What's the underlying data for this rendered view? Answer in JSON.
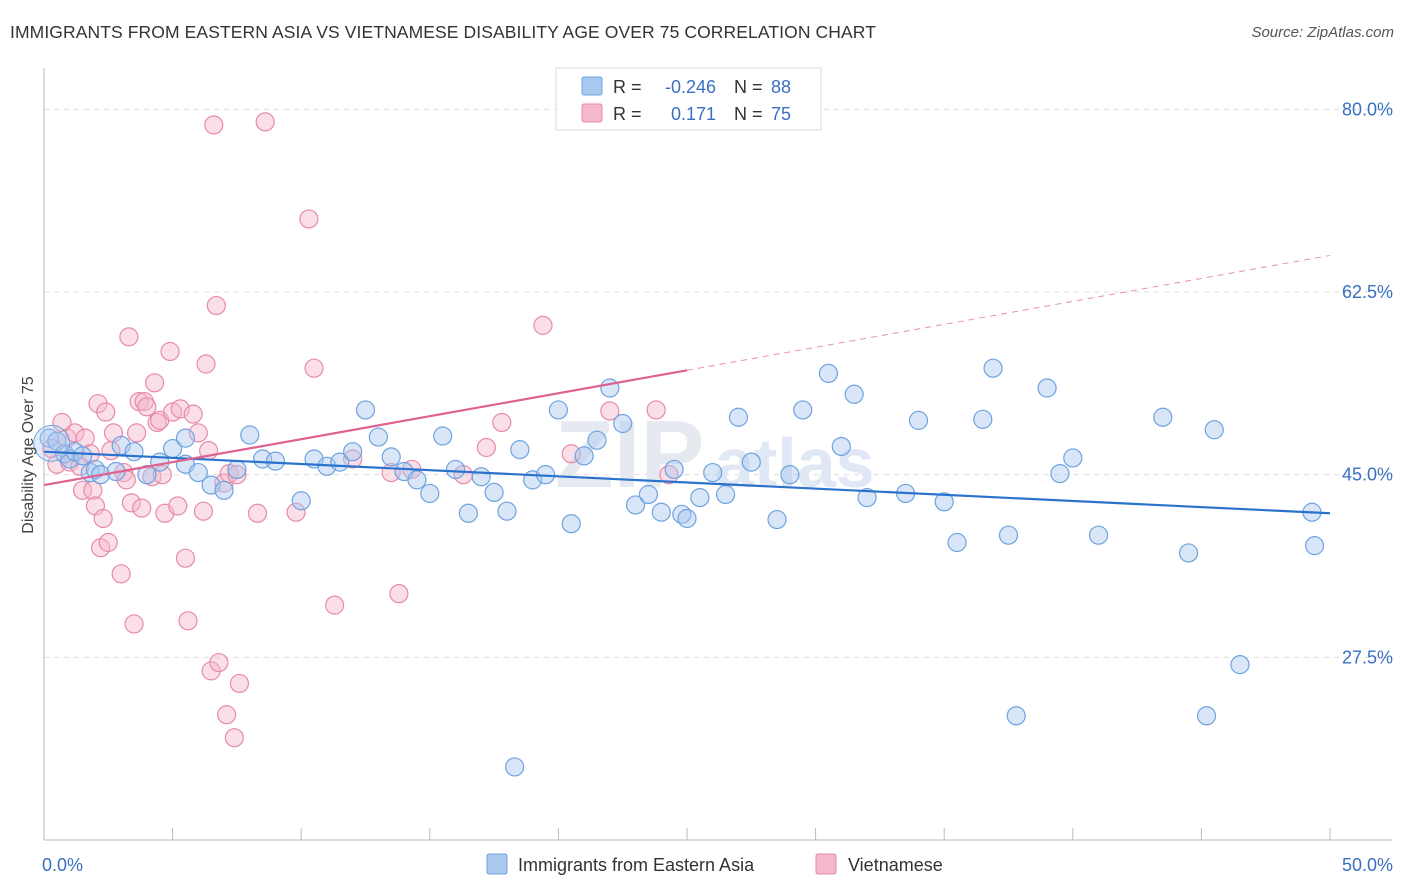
{
  "title": "IMMIGRANTS FROM EASTERN ASIA VS VIETNAMESE DISABILITY AGE OVER 75 CORRELATION CHART",
  "source": "Source: ZipAtlas.com",
  "watermark": {
    "zip": "ZIP",
    "atlas": "atlas"
  },
  "colors": {
    "blue_fill": "#a8c8f0",
    "blue_stroke": "#6fa3df",
    "blue_line": "#2a72cc",
    "pink_fill": "#f4b8cc",
    "pink_stroke": "#e88aa9",
    "pink_line": "#e0608f",
    "tick_label": "#3a6fc4",
    "grid": "#dcdcdc"
  },
  "legend": {
    "rows": [
      {
        "r_label": "R =",
        "r_value": "-0.246",
        "n_label": "N =",
        "n_value": "88"
      },
      {
        "r_label": "R =",
        "r_value": "0.171",
        "n_label": "N =",
        "n_value": "75"
      }
    ]
  },
  "chart_data": {
    "type": "scatter",
    "ylabel": "Disability Age Over 75",
    "xlim": [
      0,
      50
    ],
    "ylim": [
      10,
      83
    ],
    "x_tick_labels": [
      {
        "value": 0,
        "label": "0.0%"
      },
      {
        "value": 50,
        "label": "50.0%"
      }
    ],
    "y_tick_labels": [
      {
        "value": 80,
        "label": "80.0%"
      },
      {
        "value": 62.5,
        "label": "62.5%"
      },
      {
        "value": 45,
        "label": "45.0%"
      },
      {
        "value": 27.5,
        "label": "27.5%"
      }
    ],
    "grid": true,
    "legend_position": "bottom",
    "series": [
      {
        "name": "Immigrants from Eastern Asia",
        "color": "#a8c8f0",
        "trend": {
          "x0": 0,
          "y0": 47.2,
          "x1": 50,
          "y1": 41.3
        },
        "points": [
          [
            0.2,
            48.5
          ],
          [
            0.5,
            48.2
          ],
          [
            0.8,
            47.0
          ],
          [
            1.0,
            46.5
          ],
          [
            1.2,
            47.2
          ],
          [
            1.5,
            46.8
          ],
          [
            1.8,
            45.2
          ],
          [
            2.0,
            45.5
          ],
          [
            2.2,
            45.0
          ],
          [
            3.0,
            47.8
          ],
          [
            3.5,
            47.2
          ],
          [
            4.0,
            45.0
          ],
          [
            4.5,
            46.2
          ],
          [
            5.0,
            47.5
          ],
          [
            5.5,
            46.0
          ],
          [
            5.5,
            48.5
          ],
          [
            6.0,
            45.2
          ],
          [
            6.5,
            44.0
          ],
          [
            7.0,
            43.5
          ],
          [
            7.5,
            45.5
          ],
          [
            8.0,
            48.8
          ],
          [
            8.5,
            46.5
          ],
          [
            9.0,
            46.3
          ],
          [
            10.0,
            42.5
          ],
          [
            10.5,
            46.5
          ],
          [
            11.0,
            45.8
          ],
          [
            11.5,
            46.2
          ],
          [
            12.0,
            47.2
          ],
          [
            12.5,
            51.2
          ],
          [
            13.0,
            48.6
          ],
          [
            13.5,
            46.7
          ],
          [
            14.0,
            45.3
          ],
          [
            14.5,
            44.5
          ],
          [
            15.0,
            43.2
          ],
          [
            15.5,
            48.7
          ],
          [
            16.0,
            45.5
          ],
          [
            16.5,
            41.3
          ],
          [
            17.0,
            44.8
          ],
          [
            17.5,
            43.3
          ],
          [
            18.0,
            41.5
          ],
          [
            18.5,
            47.4
          ],
          [
            19.0,
            44.5
          ],
          [
            19.5,
            45.0
          ],
          [
            20.0,
            51.2
          ],
          [
            20.5,
            40.3
          ],
          [
            21.0,
            46.8
          ],
          [
            21.5,
            48.3
          ],
          [
            22.0,
            53.3
          ],
          [
            22.5,
            49.9
          ],
          [
            23.0,
            42.1
          ],
          [
            23.5,
            43.1
          ],
          [
            24.0,
            41.4
          ],
          [
            24.5,
            45.5
          ],
          [
            24.8,
            41.2
          ],
          [
            25.0,
            40.8
          ],
          [
            25.5,
            42.8
          ],
          [
            26.0,
            45.2
          ],
          [
            26.5,
            43.1
          ],
          [
            27.0,
            50.5
          ],
          [
            27.5,
            46.2
          ],
          [
            28.5,
            40.7
          ],
          [
            29.0,
            45.0
          ],
          [
            29.5,
            51.2
          ],
          [
            30.5,
            54.7
          ],
          [
            31.0,
            47.7
          ],
          [
            31.5,
            52.7
          ],
          [
            32.0,
            42.8
          ],
          [
            33.5,
            43.2
          ],
          [
            34.0,
            50.2
          ],
          [
            35.0,
            42.4
          ],
          [
            35.5,
            38.5
          ],
          [
            36.5,
            50.3
          ],
          [
            36.9,
            55.2
          ],
          [
            37.5,
            39.2
          ],
          [
            39.0,
            53.3
          ],
          [
            39.5,
            45.1
          ],
          [
            40.0,
            46.6
          ],
          [
            41.0,
            39.2
          ],
          [
            43.5,
            50.5
          ],
          [
            44.5,
            37.5
          ],
          [
            45.5,
            49.3
          ],
          [
            46.5,
            26.8
          ],
          [
            49.3,
            41.4
          ],
          [
            49.4,
            38.2
          ],
          [
            18.3,
            17.0
          ],
          [
            37.8,
            21.9
          ],
          [
            45.2,
            21.9
          ],
          [
            2.8,
            45.3
          ]
        ]
      },
      {
        "name": "Vietnamese",
        "color": "#f4b8cc",
        "trend": {
          "x0": 0,
          "y0": 44.0,
          "x1": 25,
          "y1": 55.0,
          "dash_to_x": 50,
          "dash_to_y": 66.0
        },
        "points": [
          [
            0.3,
            47.5
          ],
          [
            0.5,
            46.0
          ],
          [
            0.7,
            50.0
          ],
          [
            0.9,
            48.5
          ],
          [
            1.0,
            46.2
          ],
          [
            1.2,
            49.0
          ],
          [
            1.4,
            45.8
          ],
          [
            1.5,
            43.5
          ],
          [
            1.6,
            48.5
          ],
          [
            1.8,
            47.0
          ],
          [
            1.9,
            43.5
          ],
          [
            2.0,
            42.0
          ],
          [
            2.1,
            51.8
          ],
          [
            2.2,
            38.0
          ],
          [
            2.3,
            40.8
          ],
          [
            2.4,
            51.0
          ],
          [
            2.5,
            38.5
          ],
          [
            2.6,
            47.3
          ],
          [
            2.7,
            49.0
          ],
          [
            3.0,
            35.5
          ],
          [
            3.1,
            45.2
          ],
          [
            3.2,
            44.5
          ],
          [
            3.3,
            58.2
          ],
          [
            3.4,
            42.3
          ],
          [
            3.5,
            30.7
          ],
          [
            3.6,
            49.0
          ],
          [
            3.7,
            52.0
          ],
          [
            3.8,
            41.8
          ],
          [
            3.9,
            52.0
          ],
          [
            4.0,
            51.5
          ],
          [
            4.2,
            44.8
          ],
          [
            4.3,
            53.8
          ],
          [
            4.4,
            50.0
          ],
          [
            4.5,
            50.2
          ],
          [
            4.6,
            45.0
          ],
          [
            4.7,
            41.3
          ],
          [
            4.9,
            56.8
          ],
          [
            5.0,
            51.0
          ],
          [
            5.2,
            42.0
          ],
          [
            5.3,
            51.3
          ],
          [
            5.5,
            37.0
          ],
          [
            5.6,
            31.0
          ],
          [
            5.8,
            50.8
          ],
          [
            6.0,
            49.0
          ],
          [
            6.2,
            41.5
          ],
          [
            6.3,
            55.6
          ],
          [
            6.4,
            47.3
          ],
          [
            6.5,
            26.2
          ],
          [
            6.6,
            78.5
          ],
          [
            6.7,
            61.2
          ],
          [
            6.8,
            27.0
          ],
          [
            7.0,
            44.2
          ],
          [
            7.1,
            22.0
          ],
          [
            7.2,
            45.1
          ],
          [
            7.4,
            19.8
          ],
          [
            7.5,
            45.0
          ],
          [
            7.6,
            25.0
          ],
          [
            8.3,
            41.3
          ],
          [
            8.6,
            78.8
          ],
          [
            9.8,
            41.4
          ],
          [
            10.3,
            69.5
          ],
          [
            10.5,
            55.2
          ],
          [
            11.3,
            32.5
          ],
          [
            12.0,
            46.5
          ],
          [
            13.5,
            45.2
          ],
          [
            13.8,
            33.6
          ],
          [
            14.3,
            45.5
          ],
          [
            16.3,
            45.0
          ],
          [
            17.2,
            47.6
          ],
          [
            17.8,
            50.0
          ],
          [
            19.4,
            59.3
          ],
          [
            20.5,
            47.0
          ],
          [
            22.0,
            51.1
          ],
          [
            23.8,
            51.2
          ],
          [
            24.3,
            45.0
          ]
        ]
      }
    ]
  }
}
